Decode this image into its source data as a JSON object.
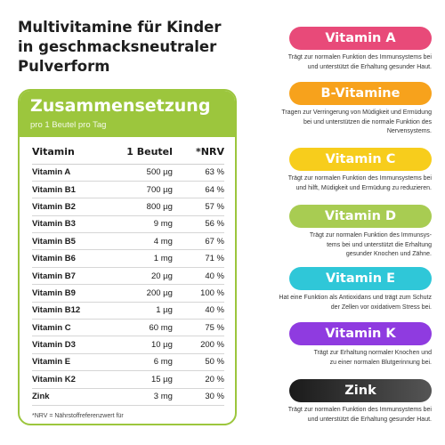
{
  "title": "Multivitamine für Kinder\nin geschmacksneutraler\nPulverform",
  "panel": {
    "title": "Zusammensetzung",
    "subtitle": "pro 1 Beutel pro Tag",
    "headers": [
      "Vitamin",
      "1 Beutel",
      "*NRV"
    ],
    "rows": [
      [
        "Vitamin A",
        "500 µg",
        "63 %"
      ],
      [
        "Vitamin B1",
        "700 µg",
        "64 %"
      ],
      [
        "Vitamin B2",
        "800 µg",
        "57 %"
      ],
      [
        "Vitamin B3",
        "9 mg",
        "56 %"
      ],
      [
        "Vitamin B5",
        "4 mg",
        "67 %"
      ],
      [
        "Vitamin B6",
        "1 mg",
        "71 %"
      ],
      [
        "Vitamin B7",
        "20 µg",
        "40 %"
      ],
      [
        "Vitamin B9",
        "200 µg",
        "100 %"
      ],
      [
        "Vitamin B12",
        "1 µg",
        "40 %"
      ],
      [
        "Vitamin C",
        "60 mg",
        "75 %"
      ],
      [
        "Vitamin D3",
        "10 µg",
        "200 %"
      ],
      [
        "Vitamin E",
        "6 mg",
        "50 %"
      ],
      [
        "Vitamin K2",
        "15 µg",
        "20 %"
      ],
      [
        "Zink",
        "3 mg",
        "30 %"
      ]
    ],
    "footnote": "*NRV = Nährstoffreferenzwert für"
  },
  "vitamins": [
    {
      "name": "Vitamin A",
      "color": "#e84a79",
      "desc": "Trägt zur normalen Funktion des Immunsystems bei\nund unterstützt die Erhaltung gesunder Haut."
    },
    {
      "name": "B-Vitamine",
      "color": "#f7a21c",
      "desc": "Tragen zur Verringerung von Müdigkeit und Ermüdung\nbei und unterstützen die normale Funktion des\nNervensystems."
    },
    {
      "name": "Vitamin C",
      "color": "#f7cd1c",
      "desc": "Trägt zur normalen Funktion des Immunsystems bei\nund hilft, Müdigkeit und Ermüdung zu reduzieren."
    },
    {
      "name": "Vitamin D",
      "color": "#a8cc52",
      "desc": "Trägt zur normalen Funktion des Immunsys-\ntems bei und unterstützt die Erhaltung\ngesunder Knochen und Zähne."
    },
    {
      "name": "Vitamin E",
      "color": "#2fc7d8",
      "desc": "Hat eine Funktion als Antioxidans und trägt zum Schutz\nder Zellen vor oxidativem Stress bei."
    },
    {
      "name": "Vitamin K",
      "color": "#8f3be0",
      "desc": "Trägt zur Erhaltung normaler Knochen und\nzu einer normalen Blutgerinnung bei."
    },
    {
      "name": "Zink",
      "color": "#3a3a3a",
      "desc": "Trägt zur normalen Funktion des Immunsystems bei\nund unterstützt die Erhaltung gesunder Haut."
    }
  ]
}
